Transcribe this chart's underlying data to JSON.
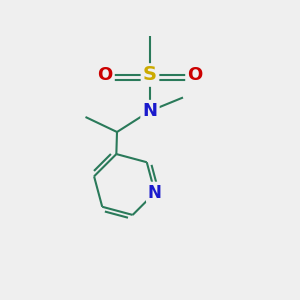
{
  "bg_color": "#efefef",
  "bond_color": "#2a7a5a",
  "bond_width": 1.5,
  "atom_colors": {
    "S": "#ccaa00",
    "N": "#1a1acc",
    "O": "#cc0000",
    "C": "#2a7a5a"
  },
  "figsize": [
    3.0,
    3.0
  ],
  "dpi": 100,
  "xlim": [
    0,
    10
  ],
  "ylim": [
    0,
    10
  ]
}
